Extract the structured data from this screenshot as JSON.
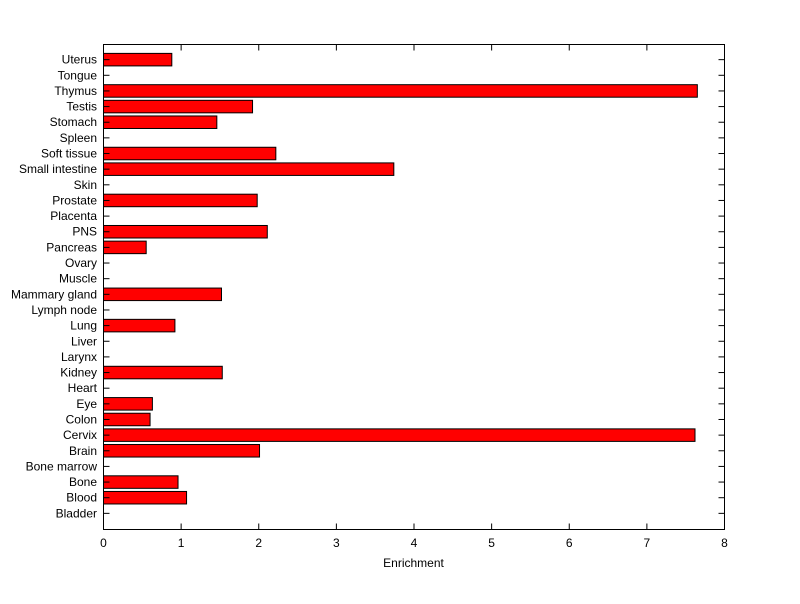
{
  "figure": {
    "background_color": "#FFFFFF"
  },
  "chart_data": {
    "type": "bar",
    "orientation": "horizontal",
    "title": "",
    "xlabel": "Enrichment",
    "ylabel": "",
    "xlim": [
      0,
      8
    ],
    "xticks": [
      0,
      1,
      2,
      3,
      4,
      5,
      6,
      7,
      8
    ],
    "grid": false,
    "legend": null,
    "box": true,
    "bar_color": "#FF0000",
    "bar_edge_color": "#000000",
    "axis_color": "#000000",
    "categories_top_to_bottom": [
      "Uterus",
      "Tongue",
      "Thymus",
      "Testis",
      "Stomach",
      "Spleen",
      "Soft tissue",
      "Small intestine",
      "Skin",
      "Prostate",
      "Placenta",
      "PNS",
      "Pancreas",
      "Ovary",
      "Muscle",
      "Mammary gland",
      "Lymph node",
      "Lung",
      "Liver",
      "Larynx",
      "Kidney",
      "Heart",
      "Eye",
      "Colon",
      "Cervix",
      "Brain",
      "Bone marrow",
      "Bone",
      "Blood",
      "Bladder"
    ],
    "values": [
      0.88,
      0,
      7.65,
      1.92,
      1.46,
      0,
      2.22,
      3.74,
      0,
      1.98,
      0,
      2.11,
      0.55,
      0,
      0,
      1.52,
      0,
      0.92,
      0,
      0,
      1.53,
      0,
      0.63,
      0.6,
      7.62,
      2.01,
      0,
      0.96,
      1.07,
      0
    ]
  }
}
